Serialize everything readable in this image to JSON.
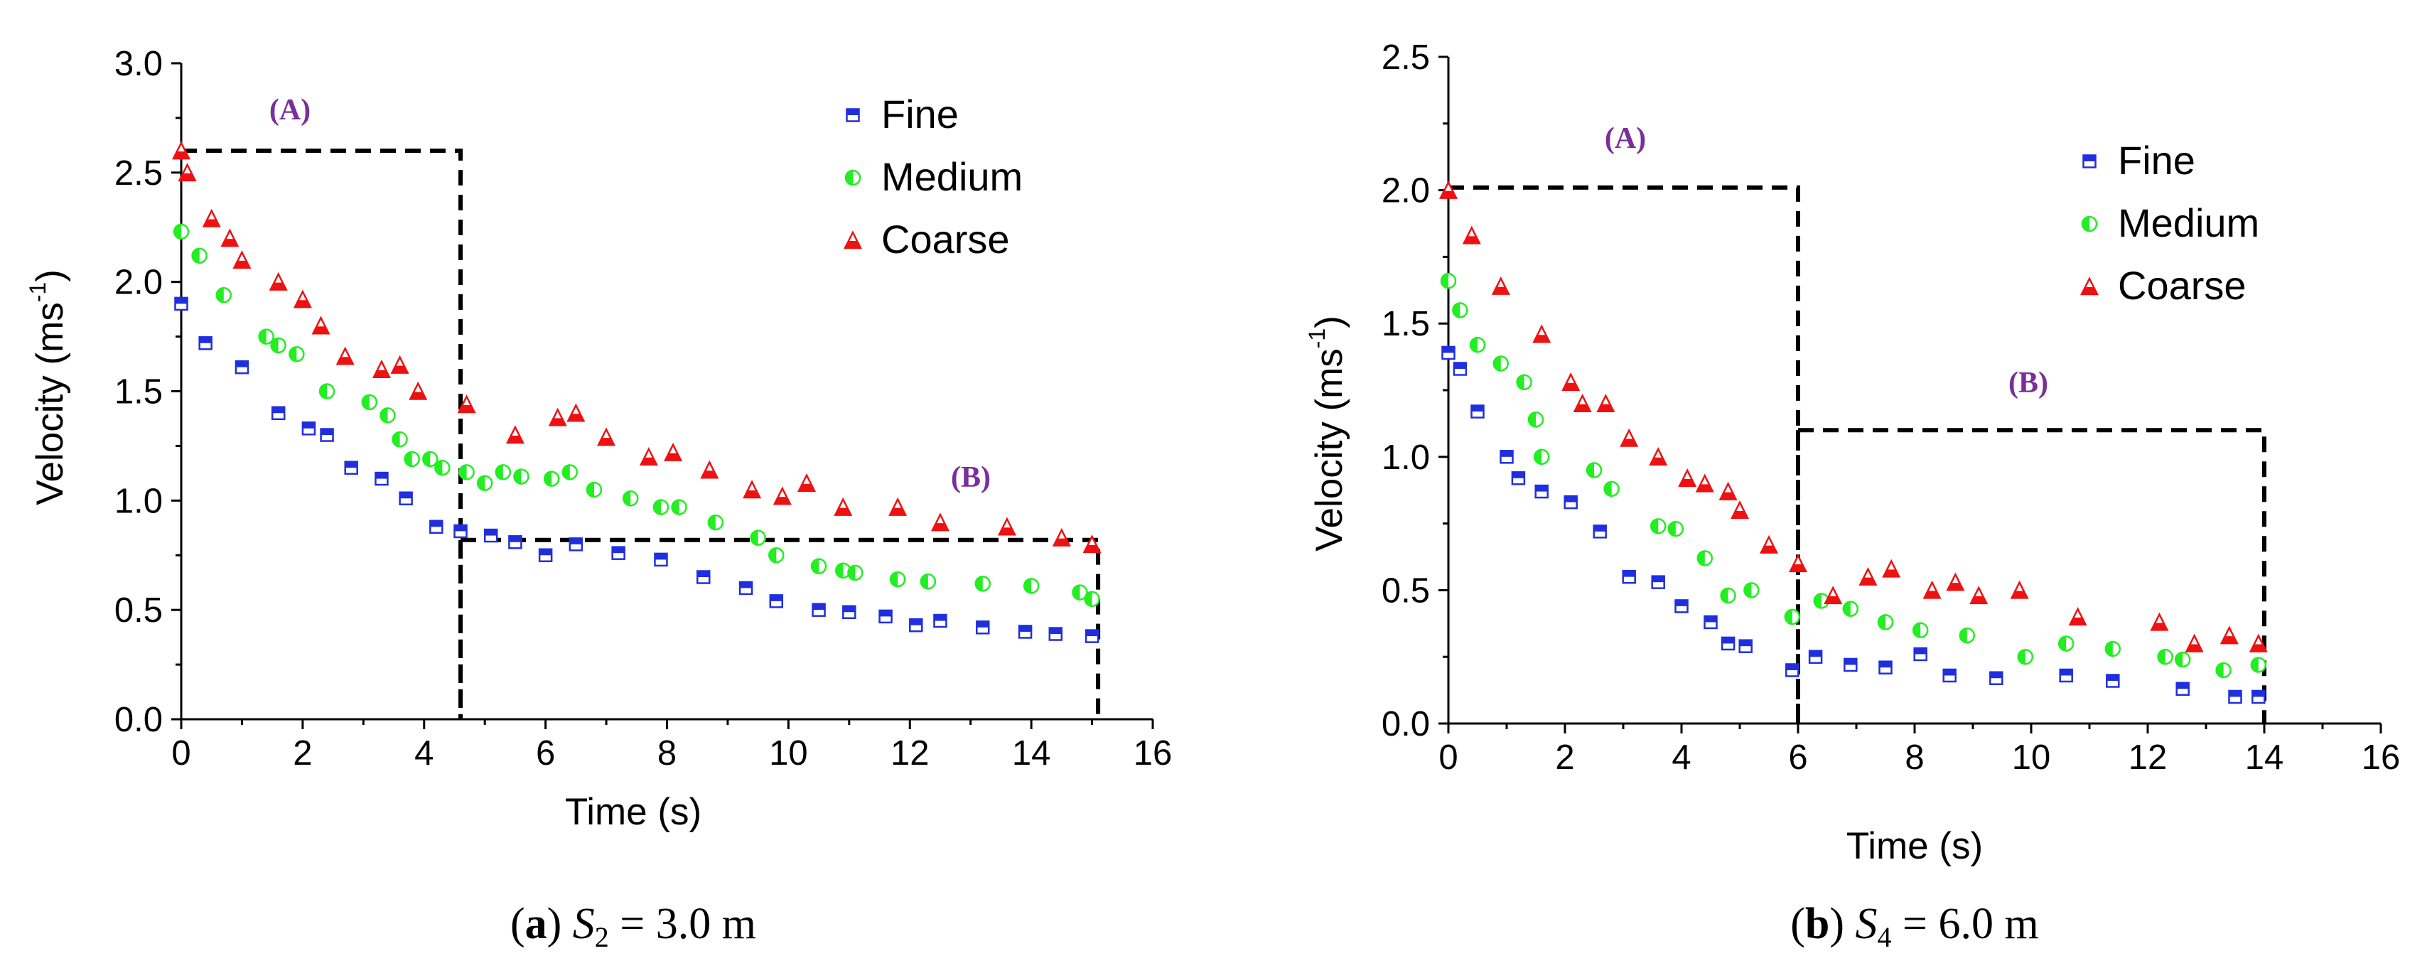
{
  "charts": [
    {
      "caption": {
        "open": "(",
        "letter": "a",
        "close": ")",
        "var": "S",
        "sub": "2",
        "rest": " = 3.0 m"
      },
      "region_labels": [
        "(A)",
        "(B)"
      ],
      "xlabel": "Time (s)",
      "ylabel": {
        "main": "Velocity (ms",
        "sup": "-1",
        "end": ")"
      },
      "xticks": [
        "0",
        "2",
        "4",
        "6",
        "8",
        "10",
        "12",
        "14",
        "16"
      ],
      "yticks": [
        "0.0",
        "0.5",
        "1.0",
        "1.5",
        "2.0",
        "2.5",
        "3.0"
      ],
      "legend": [
        "Fine",
        "Medium",
        "Coarse"
      ]
    },
    {
      "caption": {
        "open": "(",
        "letter": "b",
        "close": ")",
        "var": "S",
        "sub": "4",
        "rest": " = 6.0 m"
      },
      "region_labels": [
        "(A)",
        "(B)"
      ],
      "xlabel": "Time (s)",
      "ylabel": {
        "main": "Velocity (ms",
        "sup": "-1",
        "end": ")"
      },
      "xticks": [
        "0",
        "2",
        "4",
        "6",
        "8",
        "10",
        "12",
        "14",
        "16"
      ],
      "yticks": [
        "0.0",
        "0.5",
        "1.0",
        "1.5",
        "2.0",
        "2.5"
      ],
      "legend": [
        "Fine",
        "Medium",
        "Coarse"
      ]
    }
  ],
  "chart_data": [
    {
      "type": "scatter",
      "title": "",
      "xlabel": "Time (s)",
      "ylabel": "Velocity (ms-1)",
      "xlim": [
        0,
        16
      ],
      "ylim": [
        0,
        3.0
      ],
      "legend_position": "top-right",
      "colors": {
        "Fine": "#1f2fe0",
        "Medium": "#22ee22",
        "Coarse": "#ee1111"
      },
      "regions": [
        {
          "label": "(A)",
          "x": [
            0,
            4.6
          ],
          "y": [
            0,
            2.6
          ]
        },
        {
          "label": "(B)",
          "x": [
            4.6,
            15.1
          ],
          "y": [
            0,
            0.82
          ]
        }
      ],
      "series": [
        {
          "name": "Fine",
          "marker": "square",
          "points": [
            [
              0,
              1.9
            ],
            [
              0.4,
              1.72
            ],
            [
              1.0,
              1.61
            ],
            [
              1.6,
              1.4
            ],
            [
              2.1,
              1.33
            ],
            [
              2.4,
              1.3
            ],
            [
              2.8,
              1.15
            ],
            [
              3.3,
              1.1
            ],
            [
              3.7,
              1.01
            ],
            [
              4.2,
              0.88
            ],
            [
              4.6,
              0.86
            ],
            [
              5.1,
              0.84
            ],
            [
              5.5,
              0.81
            ],
            [
              6.0,
              0.75
            ],
            [
              6.5,
              0.8
            ],
            [
              7.2,
              0.76
            ],
            [
              7.9,
              0.73
            ],
            [
              8.6,
              0.65
            ],
            [
              9.3,
              0.6
            ],
            [
              9.8,
              0.54
            ],
            [
              10.5,
              0.5
            ],
            [
              11.0,
              0.49
            ],
            [
              11.6,
              0.47
            ],
            [
              12.1,
              0.43
            ],
            [
              12.5,
              0.45
            ],
            [
              13.2,
              0.42
            ],
            [
              13.9,
              0.4
            ],
            [
              14.4,
              0.39
            ],
            [
              15.0,
              0.38
            ]
          ]
        },
        {
          "name": "Medium",
          "marker": "circle",
          "points": [
            [
              0,
              2.23
            ],
            [
              0.3,
              2.12
            ],
            [
              0.7,
              1.94
            ],
            [
              1.4,
              1.75
            ],
            [
              1.6,
              1.71
            ],
            [
              1.9,
              1.67
            ],
            [
              2.4,
              1.5
            ],
            [
              3.1,
              1.45
            ],
            [
              3.4,
              1.39
            ],
            [
              3.6,
              1.28
            ],
            [
              3.8,
              1.19
            ],
            [
              4.1,
              1.19
            ],
            [
              4.3,
              1.15
            ],
            [
              4.7,
              1.13
            ],
            [
              5.0,
              1.08
            ],
            [
              5.3,
              1.13
            ],
            [
              5.6,
              1.11
            ],
            [
              6.1,
              1.1
            ],
            [
              6.4,
              1.13
            ],
            [
              6.8,
              1.05
            ],
            [
              7.4,
              1.01
            ],
            [
              7.9,
              0.97
            ],
            [
              8.2,
              0.97
            ],
            [
              8.8,
              0.9
            ],
            [
              9.5,
              0.83
            ],
            [
              9.8,
              0.75
            ],
            [
              10.5,
              0.7
            ],
            [
              10.9,
              0.68
            ],
            [
              11.1,
              0.67
            ],
            [
              11.8,
              0.64
            ],
            [
              12.3,
              0.63
            ],
            [
              13.2,
              0.62
            ],
            [
              14.0,
              0.61
            ],
            [
              14.8,
              0.58
            ],
            [
              15.0,
              0.55
            ]
          ]
        },
        {
          "name": "Coarse",
          "marker": "triangle",
          "points": [
            [
              0,
              2.6
            ],
            [
              0.1,
              2.5
            ],
            [
              0.5,
              2.29
            ],
            [
              0.8,
              2.2
            ],
            [
              1.0,
              2.1
            ],
            [
              1.6,
              2.0
            ],
            [
              2.0,
              1.92
            ],
            [
              2.3,
              1.8
            ],
            [
              2.7,
              1.66
            ],
            [
              3.3,
              1.6
            ],
            [
              3.6,
              1.62
            ],
            [
              3.9,
              1.5
            ],
            [
              4.7,
              1.44
            ],
            [
              5.5,
              1.3
            ],
            [
              6.2,
              1.38
            ],
            [
              6.5,
              1.4
            ],
            [
              7.0,
              1.29
            ],
            [
              7.7,
              1.2
            ],
            [
              8.1,
              1.22
            ],
            [
              8.7,
              1.14
            ],
            [
              9.4,
              1.05
            ],
            [
              9.9,
              1.02
            ],
            [
              10.3,
              1.08
            ],
            [
              10.9,
              0.97
            ],
            [
              11.8,
              0.97
            ],
            [
              12.5,
              0.9
            ],
            [
              13.6,
              0.88
            ],
            [
              14.5,
              0.83
            ],
            [
              15.0,
              0.8
            ]
          ]
        }
      ]
    },
    {
      "type": "scatter",
      "title": "",
      "xlabel": "Time (s)",
      "ylabel": "Velocity (ms-1)",
      "xlim": [
        0,
        16
      ],
      "ylim": [
        0,
        2.5
      ],
      "legend_position": "top-right",
      "colors": {
        "Fine": "#1f2fe0",
        "Medium": "#22ee22",
        "Coarse": "#ee1111"
      },
      "regions": [
        {
          "label": "(A)",
          "x": [
            0,
            6.0
          ],
          "y": [
            0,
            2.01
          ]
        },
        {
          "label": "(B)",
          "x": [
            6.0,
            14.0
          ],
          "y": [
            0,
            1.1
          ]
        }
      ],
      "series": [
        {
          "name": "Fine",
          "marker": "square",
          "points": [
            [
              0,
              1.39
            ],
            [
              0.2,
              1.33
            ],
            [
              0.5,
              1.17
            ],
            [
              1.0,
              1.0
            ],
            [
              1.2,
              0.92
            ],
            [
              1.6,
              0.87
            ],
            [
              2.1,
              0.83
            ],
            [
              2.6,
              0.72
            ],
            [
              3.1,
              0.55
            ],
            [
              3.6,
              0.53
            ],
            [
              4.0,
              0.44
            ],
            [
              4.5,
              0.38
            ],
            [
              4.8,
              0.3
            ],
            [
              5.1,
              0.29
            ],
            [
              5.9,
              0.2
            ],
            [
              6.3,
              0.25
            ],
            [
              6.9,
              0.22
            ],
            [
              7.5,
              0.21
            ],
            [
              8.1,
              0.26
            ],
            [
              8.6,
              0.18
            ],
            [
              9.4,
              0.17
            ],
            [
              10.6,
              0.18
            ],
            [
              11.4,
              0.16
            ],
            [
              12.6,
              0.13
            ],
            [
              13.5,
              0.1
            ],
            [
              13.9,
              0.1
            ]
          ]
        },
        {
          "name": "Medium",
          "marker": "circle",
          "points": [
            [
              0,
              1.66
            ],
            [
              0.2,
              1.55
            ],
            [
              0.5,
              1.42
            ],
            [
              0.9,
              1.35
            ],
            [
              1.3,
              1.28
            ],
            [
              1.5,
              1.14
            ],
            [
              1.6,
              1.0
            ],
            [
              2.5,
              0.95
            ],
            [
              2.8,
              0.88
            ],
            [
              3.6,
              0.74
            ],
            [
              3.9,
              0.73
            ],
            [
              4.4,
              0.62
            ],
            [
              4.8,
              0.48
            ],
            [
              5.2,
              0.5
            ],
            [
              5.9,
              0.4
            ],
            [
              6.4,
              0.46
            ],
            [
              6.9,
              0.43
            ],
            [
              7.5,
              0.38
            ],
            [
              8.1,
              0.35
            ],
            [
              8.9,
              0.33
            ],
            [
              9.9,
              0.25
            ],
            [
              10.6,
              0.3
            ],
            [
              11.4,
              0.28
            ],
            [
              12.3,
              0.25
            ],
            [
              12.6,
              0.24
            ],
            [
              13.3,
              0.2
            ],
            [
              13.9,
              0.22
            ]
          ]
        },
        {
          "name": "Coarse",
          "marker": "triangle",
          "points": [
            [
              0,
              2.0
            ],
            [
              0.4,
              1.83
            ],
            [
              0.9,
              1.64
            ],
            [
              1.6,
              1.46
            ],
            [
              2.1,
              1.28
            ],
            [
              2.3,
              1.2
            ],
            [
              2.7,
              1.2
            ],
            [
              3.1,
              1.07
            ],
            [
              3.6,
              1.0
            ],
            [
              4.1,
              0.92
            ],
            [
              4.4,
              0.9
            ],
            [
              4.8,
              0.87
            ],
            [
              5.0,
              0.8
            ],
            [
              5.5,
              0.67
            ],
            [
              6.0,
              0.6
            ],
            [
              6.6,
              0.48
            ],
            [
              7.2,
              0.55
            ],
            [
              7.6,
              0.58
            ],
            [
              8.3,
              0.5
            ],
            [
              8.7,
              0.53
            ],
            [
              9.1,
              0.48
            ],
            [
              9.8,
              0.5
            ],
            [
              10.8,
              0.4
            ],
            [
              12.2,
              0.38
            ],
            [
              12.8,
              0.3
            ],
            [
              13.4,
              0.33
            ],
            [
              13.9,
              0.3
            ]
          ]
        }
      ]
    }
  ]
}
